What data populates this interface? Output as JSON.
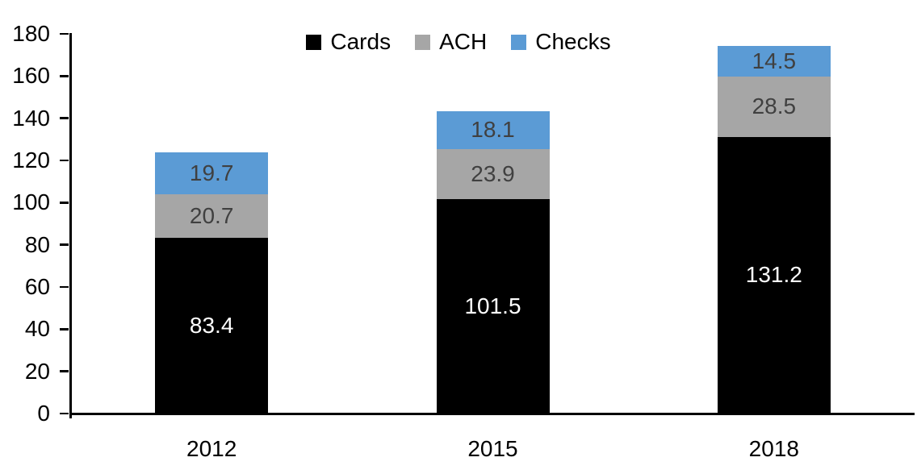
{
  "chart_data": {
    "type": "bar",
    "stacked": true,
    "title": "",
    "xlabel": "",
    "ylabel": "",
    "categories": [
      "2012",
      "2015",
      "2018"
    ],
    "series": [
      {
        "name": "Cards",
        "color": "#000000",
        "label_color": "#FFFFFF",
        "values": [
          83.4,
          101.5,
          131.2
        ]
      },
      {
        "name": "ACH",
        "color": "#A6A6A6",
        "label_color": "#404040",
        "values": [
          20.7,
          23.9,
          28.5
        ]
      },
      {
        "name": "Checks",
        "color": "#5B9BD5",
        "label_color": "#404040",
        "values": [
          19.7,
          18.1,
          14.5
        ]
      }
    ],
    "totals": [
      123.8,
      143.5,
      174.2
    ],
    "ylim": [
      0,
      180
    ],
    "ytick_step": 20,
    "yticks": [
      0,
      20,
      40,
      60,
      80,
      100,
      120,
      140,
      160,
      180
    ],
    "legend_position": "top",
    "grid": false,
    "value_label_decimals": 1,
    "axis_color": "#000000",
    "background": "#FFFFFF"
  }
}
